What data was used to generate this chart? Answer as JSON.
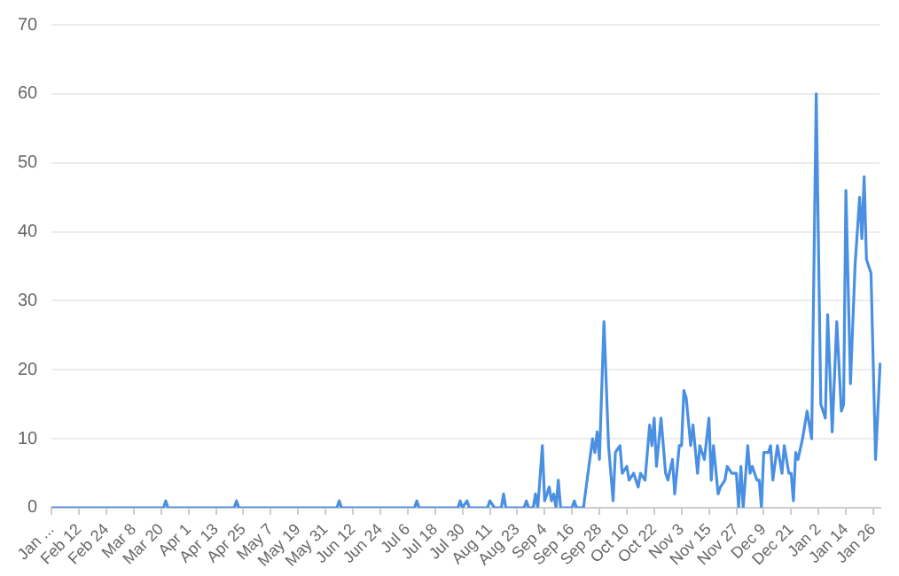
{
  "chart_data": {
    "type": "line",
    "grid": "y",
    "marker": "none",
    "line_style": "solid",
    "ylim": [
      0,
      70
    ],
    "yticks": [
      0,
      10,
      20,
      30,
      40,
      50,
      60,
      70
    ],
    "categories": [
      "Jan ...",
      null,
      null,
      null,
      null,
      null,
      null,
      null,
      null,
      null,
      null,
      null,
      "Feb 12",
      null,
      null,
      null,
      null,
      null,
      null,
      null,
      null,
      null,
      null,
      null,
      "Feb 24",
      null,
      null,
      null,
      null,
      null,
      null,
      null,
      null,
      null,
      null,
      null,
      "Mar 8",
      null,
      null,
      null,
      null,
      null,
      null,
      null,
      null,
      null,
      null,
      null,
      "Mar 20",
      null,
      null,
      null,
      null,
      null,
      null,
      null,
      null,
      null,
      null,
      null,
      "Apr 1",
      null,
      null,
      null,
      null,
      null,
      null,
      null,
      null,
      null,
      null,
      null,
      "Apr 13",
      null,
      null,
      null,
      null,
      null,
      null,
      null,
      null,
      null,
      null,
      null,
      "Apr 25",
      null,
      null,
      null,
      null,
      null,
      null,
      null,
      null,
      null,
      null,
      null,
      "May 7",
      null,
      null,
      null,
      null,
      null,
      null,
      null,
      null,
      null,
      null,
      null,
      "May 19",
      null,
      null,
      null,
      null,
      null,
      null,
      null,
      null,
      null,
      null,
      null,
      "May 31",
      null,
      null,
      null,
      null,
      null,
      null,
      null,
      null,
      null,
      null,
      null,
      "Jun 12",
      null,
      null,
      null,
      null,
      null,
      null,
      null,
      null,
      null,
      null,
      null,
      "Jun 24",
      null,
      null,
      null,
      null,
      null,
      null,
      null,
      null,
      null,
      null,
      null,
      "Jul 6",
      null,
      null,
      null,
      null,
      null,
      null,
      null,
      null,
      null,
      null,
      null,
      "Jul 18",
      null,
      null,
      null,
      null,
      null,
      null,
      null,
      null,
      null,
      null,
      null,
      "Jul 30",
      null,
      null,
      null,
      null,
      null,
      null,
      null,
      null,
      null,
      null,
      null,
      "Aug 11",
      null,
      null,
      null,
      null,
      null,
      null,
      null,
      null,
      null,
      null,
      null,
      "Aug 23",
      null,
      null,
      null,
      null,
      null,
      null,
      null,
      null,
      null,
      null,
      null,
      "Sep 4",
      null,
      null,
      null,
      null,
      null,
      null,
      null,
      null,
      null,
      null,
      null,
      "Sep 16",
      null,
      null,
      null,
      null,
      null,
      null,
      null,
      null,
      null,
      null,
      null,
      "Sep 28",
      null,
      null,
      null,
      null,
      null,
      null,
      null,
      null,
      null,
      null,
      null,
      "Oct 10",
      null,
      null,
      null,
      null,
      null,
      null,
      null,
      null,
      null,
      null,
      null,
      "Oct 22",
      null,
      null,
      null,
      null,
      null,
      null,
      null,
      null,
      null,
      null,
      null,
      "Nov 3",
      null,
      null,
      null,
      null,
      null,
      null,
      null,
      null,
      null,
      null,
      null,
      "Nov 15",
      null,
      null,
      null,
      null,
      null,
      null,
      null,
      null,
      null,
      null,
      null,
      "Nov 27",
      null,
      null,
      null,
      null,
      null,
      null,
      null,
      null,
      null,
      null,
      null,
      "Dec 9",
      null,
      null,
      null,
      null,
      null,
      null,
      null,
      null,
      null,
      null,
      null,
      "Dec 21",
      null,
      null,
      null,
      null,
      null,
      null,
      null,
      null,
      null,
      null,
      null,
      "Jan 2",
      null,
      null,
      null,
      null,
      null,
      null,
      null,
      null,
      null,
      null,
      null,
      "Jan 14",
      null,
      null,
      null,
      null,
      null,
      null,
      null,
      null,
      null,
      null,
      null,
      "Jan 26",
      null,
      null,
      null
    ],
    "series": [
      {
        "color": "#4a90e2",
        "values": [
          0,
          0,
          0,
          0,
          0,
          0,
          0,
          0,
          0,
          0,
          0,
          0,
          0,
          0,
          0,
          0,
          0,
          0,
          0,
          0,
          0,
          0,
          0,
          0,
          0,
          0,
          0,
          0,
          0,
          0,
          0,
          0,
          0,
          0,
          0,
          0,
          0,
          0,
          0,
          0,
          0,
          0,
          0,
          0,
          0,
          0,
          0,
          0,
          0,
          0,
          1,
          0,
          0,
          0,
          0,
          0,
          0,
          0,
          0,
          0,
          0,
          0,
          0,
          0,
          0,
          0,
          0,
          0,
          0,
          0,
          0,
          0,
          0,
          0,
          0,
          0,
          0,
          0,
          0,
          0,
          0,
          1,
          0,
          0,
          0,
          0,
          0,
          0,
          0,
          0,
          0,
          0,
          0,
          0,
          0,
          0,
          0,
          0,
          0,
          0,
          0,
          0,
          0,
          0,
          0,
          0,
          0,
          0,
          0,
          0,
          0,
          0,
          0,
          0,
          0,
          0,
          0,
          0,
          0,
          0,
          0,
          0,
          0,
          0,
          0,
          0,
          1,
          0,
          0,
          0,
          0,
          0,
          0,
          0,
          0,
          0,
          0,
          0,
          0,
          0,
          0,
          0,
          0,
          0,
          0,
          0,
          0,
          0,
          0,
          0,
          0,
          0,
          0,
          0,
          0,
          0,
          0,
          0,
          0,
          0,
          1,
          0,
          0,
          0,
          0,
          0,
          0,
          0,
          0,
          0,
          0,
          0,
          0,
          0,
          0,
          0,
          0,
          0,
          0,
          1,
          0,
          null,
          1,
          0,
          0,
          0,
          0,
          0,
          0,
          0,
          0,
          0,
          1,
          null,
          0,
          0,
          0,
          0,
          2,
          0,
          0,
          0,
          0,
          0,
          0,
          0,
          0,
          0,
          1,
          0,
          0,
          0,
          2,
          0,
          null,
          9,
          1,
          null,
          3,
          1,
          2,
          0,
          4,
          0,
          0,
          0,
          0,
          0,
          0,
          1,
          0,
          0,
          0,
          0,
          null,
          null,
          null,
          10,
          8,
          11,
          7,
          null,
          27,
          null,
          9,
          null,
          1,
          8,
          null,
          9,
          5,
          null,
          6,
          4,
          null,
          5,
          null,
          3,
          5,
          null,
          4,
          null,
          12,
          9,
          13,
          6,
          null,
          13,
          null,
          5,
          4,
          null,
          7,
          2,
          null,
          9,
          9,
          17,
          16,
          null,
          9,
          12,
          null,
          5,
          9,
          null,
          7,
          null,
          13,
          4,
          9,
          null,
          2,
          3,
          null,
          4,
          6,
          null,
          5,
          null,
          5,
          0,
          6,
          0,
          null,
          9,
          5,
          6,
          null,
          4,
          4,
          0,
          8,
          null,
          8,
          9,
          4,
          null,
          9,
          null,
          5,
          9,
          null,
          5,
          5,
          1,
          8,
          7,
          null,
          10,
          null,
          14,
          null,
          10,
          null,
          60,
          null,
          15,
          null,
          13,
          28,
          null,
          11,
          null,
          27,
          null,
          14,
          15,
          46,
          null,
          18,
          null,
          35,
          null,
          45,
          39,
          48,
          36,
          null,
          34,
          null,
          7,
          null,
          21
        ]
      }
    ]
  }
}
